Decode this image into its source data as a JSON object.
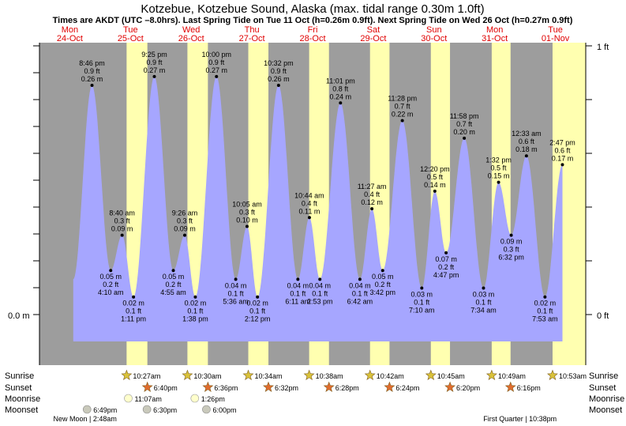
{
  "chart_data": {
    "type": "area",
    "title": "Kotzebue, Kotzebue Sound, Alaska (max. tidal range 0.30m 1.0ft)",
    "subtitle": "Times are AKDT (UTC –8.0hrs). Last Spring Tide on Tue 11 Oct (h=0.26m 0.9ft). Next Spring Tide on Wed 26 Oct (h=0.27m 0.9ft)",
    "ylim_m": [
      0.0,
      0.3
    ],
    "y_left": {
      "bottom": "0.0 m",
      "top": ""
    },
    "y_right": {
      "bottom": "0 ft",
      "top": "1 ft"
    },
    "days": [
      {
        "name": "Mon",
        "date": "24-Oct"
      },
      {
        "name": "Tue",
        "date": "25-Oct"
      },
      {
        "name": "Wed",
        "date": "26-Oct"
      },
      {
        "name": "Thu",
        "date": "27-Oct"
      },
      {
        "name": "Fri",
        "date": "28-Oct"
      },
      {
        "name": "Sat",
        "date": "29-Oct"
      },
      {
        "name": "Sun",
        "date": "30-Oct"
      },
      {
        "name": "Mon",
        "date": "31-Oct"
      },
      {
        "name": "Tue",
        "date": "01-Nov"
      }
    ],
    "tides": [
      {
        "day": 0,
        "time": "8:46 pm",
        "h": 20.77,
        "m": 0.26,
        "ft": "0.9 ft",
        "mlabel": "0.26 m",
        "type": "high"
      },
      {
        "day": 1,
        "time": "4:10 am",
        "h": 28.17,
        "m": 0.05,
        "ft": "0.2 ft",
        "mlabel": "0.05 m",
        "type": "low"
      },
      {
        "day": 1,
        "time": "8:40 am",
        "h": 32.67,
        "m": 0.09,
        "ft": "0.3 ft",
        "mlabel": "0.09 m",
        "type": "high"
      },
      {
        "day": 1,
        "time": "1:11 pm",
        "h": 37.18,
        "m": 0.02,
        "ft": "0.1 ft",
        "mlabel": "0.02 m",
        "type": "low"
      },
      {
        "day": 1,
        "time": "9:25 pm",
        "h": 45.42,
        "m": 0.27,
        "ft": "0.9 ft",
        "mlabel": "0.27 m",
        "type": "high"
      },
      {
        "day": 2,
        "time": "4:55 am",
        "h": 52.92,
        "m": 0.05,
        "ft": "0.2 ft",
        "mlabel": "0.05 m",
        "type": "low"
      },
      {
        "day": 2,
        "time": "9:26 am",
        "h": 57.43,
        "m": 0.09,
        "ft": "0.3 ft",
        "mlabel": "0.09 m",
        "type": "high"
      },
      {
        "day": 2,
        "time": "1:38 pm",
        "h": 61.63,
        "m": 0.02,
        "ft": "0.1 ft",
        "mlabel": "0.02 m",
        "type": "low"
      },
      {
        "day": 2,
        "time": "10:00 pm",
        "h": 70.0,
        "m": 0.27,
        "ft": "0.9 ft",
        "mlabel": "0.27 m",
        "type": "high"
      },
      {
        "day": 3,
        "time": "5:36 am",
        "h": 77.6,
        "m": 0.04,
        "ft": "0.1 ft",
        "mlabel": "0.04 m",
        "type": "low"
      },
      {
        "day": 3,
        "time": "10:05 am",
        "h": 82.08,
        "m": 0.1,
        "ft": "0.3 ft",
        "mlabel": "0.10 m",
        "type": "high"
      },
      {
        "day": 3,
        "time": "2:12 pm",
        "h": 86.2,
        "m": 0.02,
        "ft": "0.1 ft",
        "mlabel": "0.02 m",
        "type": "low"
      },
      {
        "day": 3,
        "time": "10:32 pm",
        "h": 94.53,
        "m": 0.26,
        "ft": "0.9 ft",
        "mlabel": "0.26 m",
        "type": "high"
      },
      {
        "day": 4,
        "time": "6:11 am",
        "h": 102.18,
        "m": 0.04,
        "ft": "0.1 ft",
        "mlabel": "0.04 m",
        "type": "low"
      },
      {
        "day": 4,
        "time": "10:44 am",
        "h": 106.73,
        "m": 0.11,
        "ft": "0.4 ft",
        "mlabel": "0.11 m",
        "type": "high"
      },
      {
        "day": 4,
        "time": "2:53 pm",
        "h": 110.88,
        "m": 0.04,
        "ft": "0.1 ft",
        "mlabel": "0.04 m",
        "type": "low"
      },
      {
        "day": 4,
        "time": "11:01 pm",
        "h": 119.02,
        "m": 0.24,
        "ft": "0.8 ft",
        "mlabel": "0.24 m",
        "type": "high"
      },
      {
        "day": 5,
        "time": "6:42 am",
        "h": 126.7,
        "m": 0.04,
        "ft": "0.1 ft",
        "mlabel": "0.04 m",
        "type": "low"
      },
      {
        "day": 5,
        "time": "11:27 am",
        "h": 131.45,
        "m": 0.12,
        "ft": "0.4 ft",
        "mlabel": "0.12 m",
        "type": "high"
      },
      {
        "day": 5,
        "time": "3:42 pm",
        "h": 135.7,
        "m": 0.05,
        "ft": "0.2 ft",
        "mlabel": "0.05 m",
        "type": "low"
      },
      {
        "day": 5,
        "time": "11:28 pm",
        "h": 143.47,
        "m": 0.22,
        "ft": "0.7 ft",
        "mlabel": "0.22 m",
        "type": "high"
      },
      {
        "day": 6,
        "time": "7:10 am",
        "h": 151.17,
        "m": 0.03,
        "ft": "0.1 ft",
        "mlabel": "0.03 m",
        "type": "low"
      },
      {
        "day": 6,
        "time": "12:20 pm",
        "h": 156.33,
        "m": 0.14,
        "ft": "0.5 ft",
        "mlabel": "0.14 m",
        "type": "high"
      },
      {
        "day": 6,
        "time": "4:47 pm",
        "h": 160.78,
        "m": 0.07,
        "ft": "0.2 ft",
        "mlabel": "0.07 m",
        "type": "low"
      },
      {
        "day": 6,
        "time": "11:58 pm",
        "h": 167.97,
        "m": 0.2,
        "ft": "0.7 ft",
        "mlabel": "0.20 m",
        "type": "high"
      },
      {
        "day": 7,
        "time": "7:34 am",
        "h": 175.57,
        "m": 0.03,
        "ft": "0.1 ft",
        "mlabel": "0.03 m",
        "type": "low"
      },
      {
        "day": 7,
        "time": "1:32 pm",
        "h": 181.53,
        "m": 0.15,
        "ft": "0.5 ft",
        "mlabel": "0.15 m",
        "type": "high"
      },
      {
        "day": 7,
        "time": "6:32 pm",
        "h": 186.53,
        "m": 0.09,
        "ft": "0.3 ft",
        "mlabel": "0.09 m",
        "type": "low"
      },
      {
        "day": 8,
        "time": "12:33 am",
        "h": 192.55,
        "m": 0.18,
        "ft": "0.6 ft",
        "mlabel": "0.18 m",
        "type": "high"
      },
      {
        "day": 8,
        "time": "7:53 am",
        "h": 199.88,
        "m": 0.02,
        "ft": "0.1 ft",
        "mlabel": "0.02 m",
        "type": "low"
      },
      {
        "day": 8,
        "time": "2:47 pm",
        "h": 206.78,
        "m": 0.17,
        "ft": "0.6 ft",
        "mlabel": "0.17 m",
        "type": "high"
      }
    ],
    "daylight": [
      {
        "rise_h": 34.45,
        "set_h": 42.67
      },
      {
        "rise_h": 58.5,
        "set_h": 66.6
      },
      {
        "rise_h": 82.57,
        "set_h": 90.53
      },
      {
        "rise_h": 106.63,
        "set_h": 114.47
      },
      {
        "rise_h": 130.7,
        "set_h": 138.4
      },
      {
        "rise_h": 154.75,
        "set_h": 162.33
      },
      {
        "rise_h": 178.82,
        "set_h": 186.27
      },
      {
        "rise_h": 202.88,
        "set_h": 216.0
      }
    ],
    "rows": {
      "sunrise": "Sunrise",
      "sunset": "Sunset",
      "moonrise": "Moonrise",
      "moonset": "Moonset"
    },
    "sunrise": [
      {
        "h": 34.45,
        "label": "10:27am"
      },
      {
        "h": 58.5,
        "label": "10:30am"
      },
      {
        "h": 82.57,
        "label": "10:34am"
      },
      {
        "h": 106.63,
        "label": "10:38am"
      },
      {
        "h": 130.7,
        "label": "10:42am"
      },
      {
        "h": 154.75,
        "label": "10:45am"
      },
      {
        "h": 178.82,
        "label": "10:49am"
      },
      {
        "h": 202.88,
        "label": "10:53am"
      }
    ],
    "sunset": [
      {
        "h": 42.67,
        "label": "6:40pm"
      },
      {
        "h": 66.6,
        "label": "6:36pm"
      },
      {
        "h": 90.53,
        "label": "6:32pm"
      },
      {
        "h": 114.47,
        "label": "6:28pm"
      },
      {
        "h": 138.4,
        "label": "6:24pm"
      },
      {
        "h": 162.33,
        "label": "6:20pm"
      },
      {
        "h": 186.27,
        "label": "6:16pm"
      }
    ],
    "moonrise": [
      {
        "h": 35.12,
        "label": "11:07am"
      },
      {
        "h": 61.43,
        "label": "1:26pm"
      }
    ],
    "moonset": [
      {
        "h": 18.82,
        "label": "6:49pm"
      },
      {
        "h": 42.5,
        "label": "6:30pm"
      },
      {
        "h": 66.0,
        "label": "6:00pm"
      }
    ],
    "notes": [
      {
        "h": 18.0,
        "label": "New Moon | 2:48am"
      },
      {
        "h": 190.0,
        "label": "First Quarter | 10:38pm"
      }
    ]
  },
  "colors": {
    "night": "#9d9d9d",
    "day": "#ffffb0",
    "water": "#a6a6ff",
    "sun": "#d9c23a",
    "sunset": "#e06c2e",
    "moonrise": "#ffffcc",
    "moonset": "#c9c9bb",
    "daytext": "#e00000"
  }
}
